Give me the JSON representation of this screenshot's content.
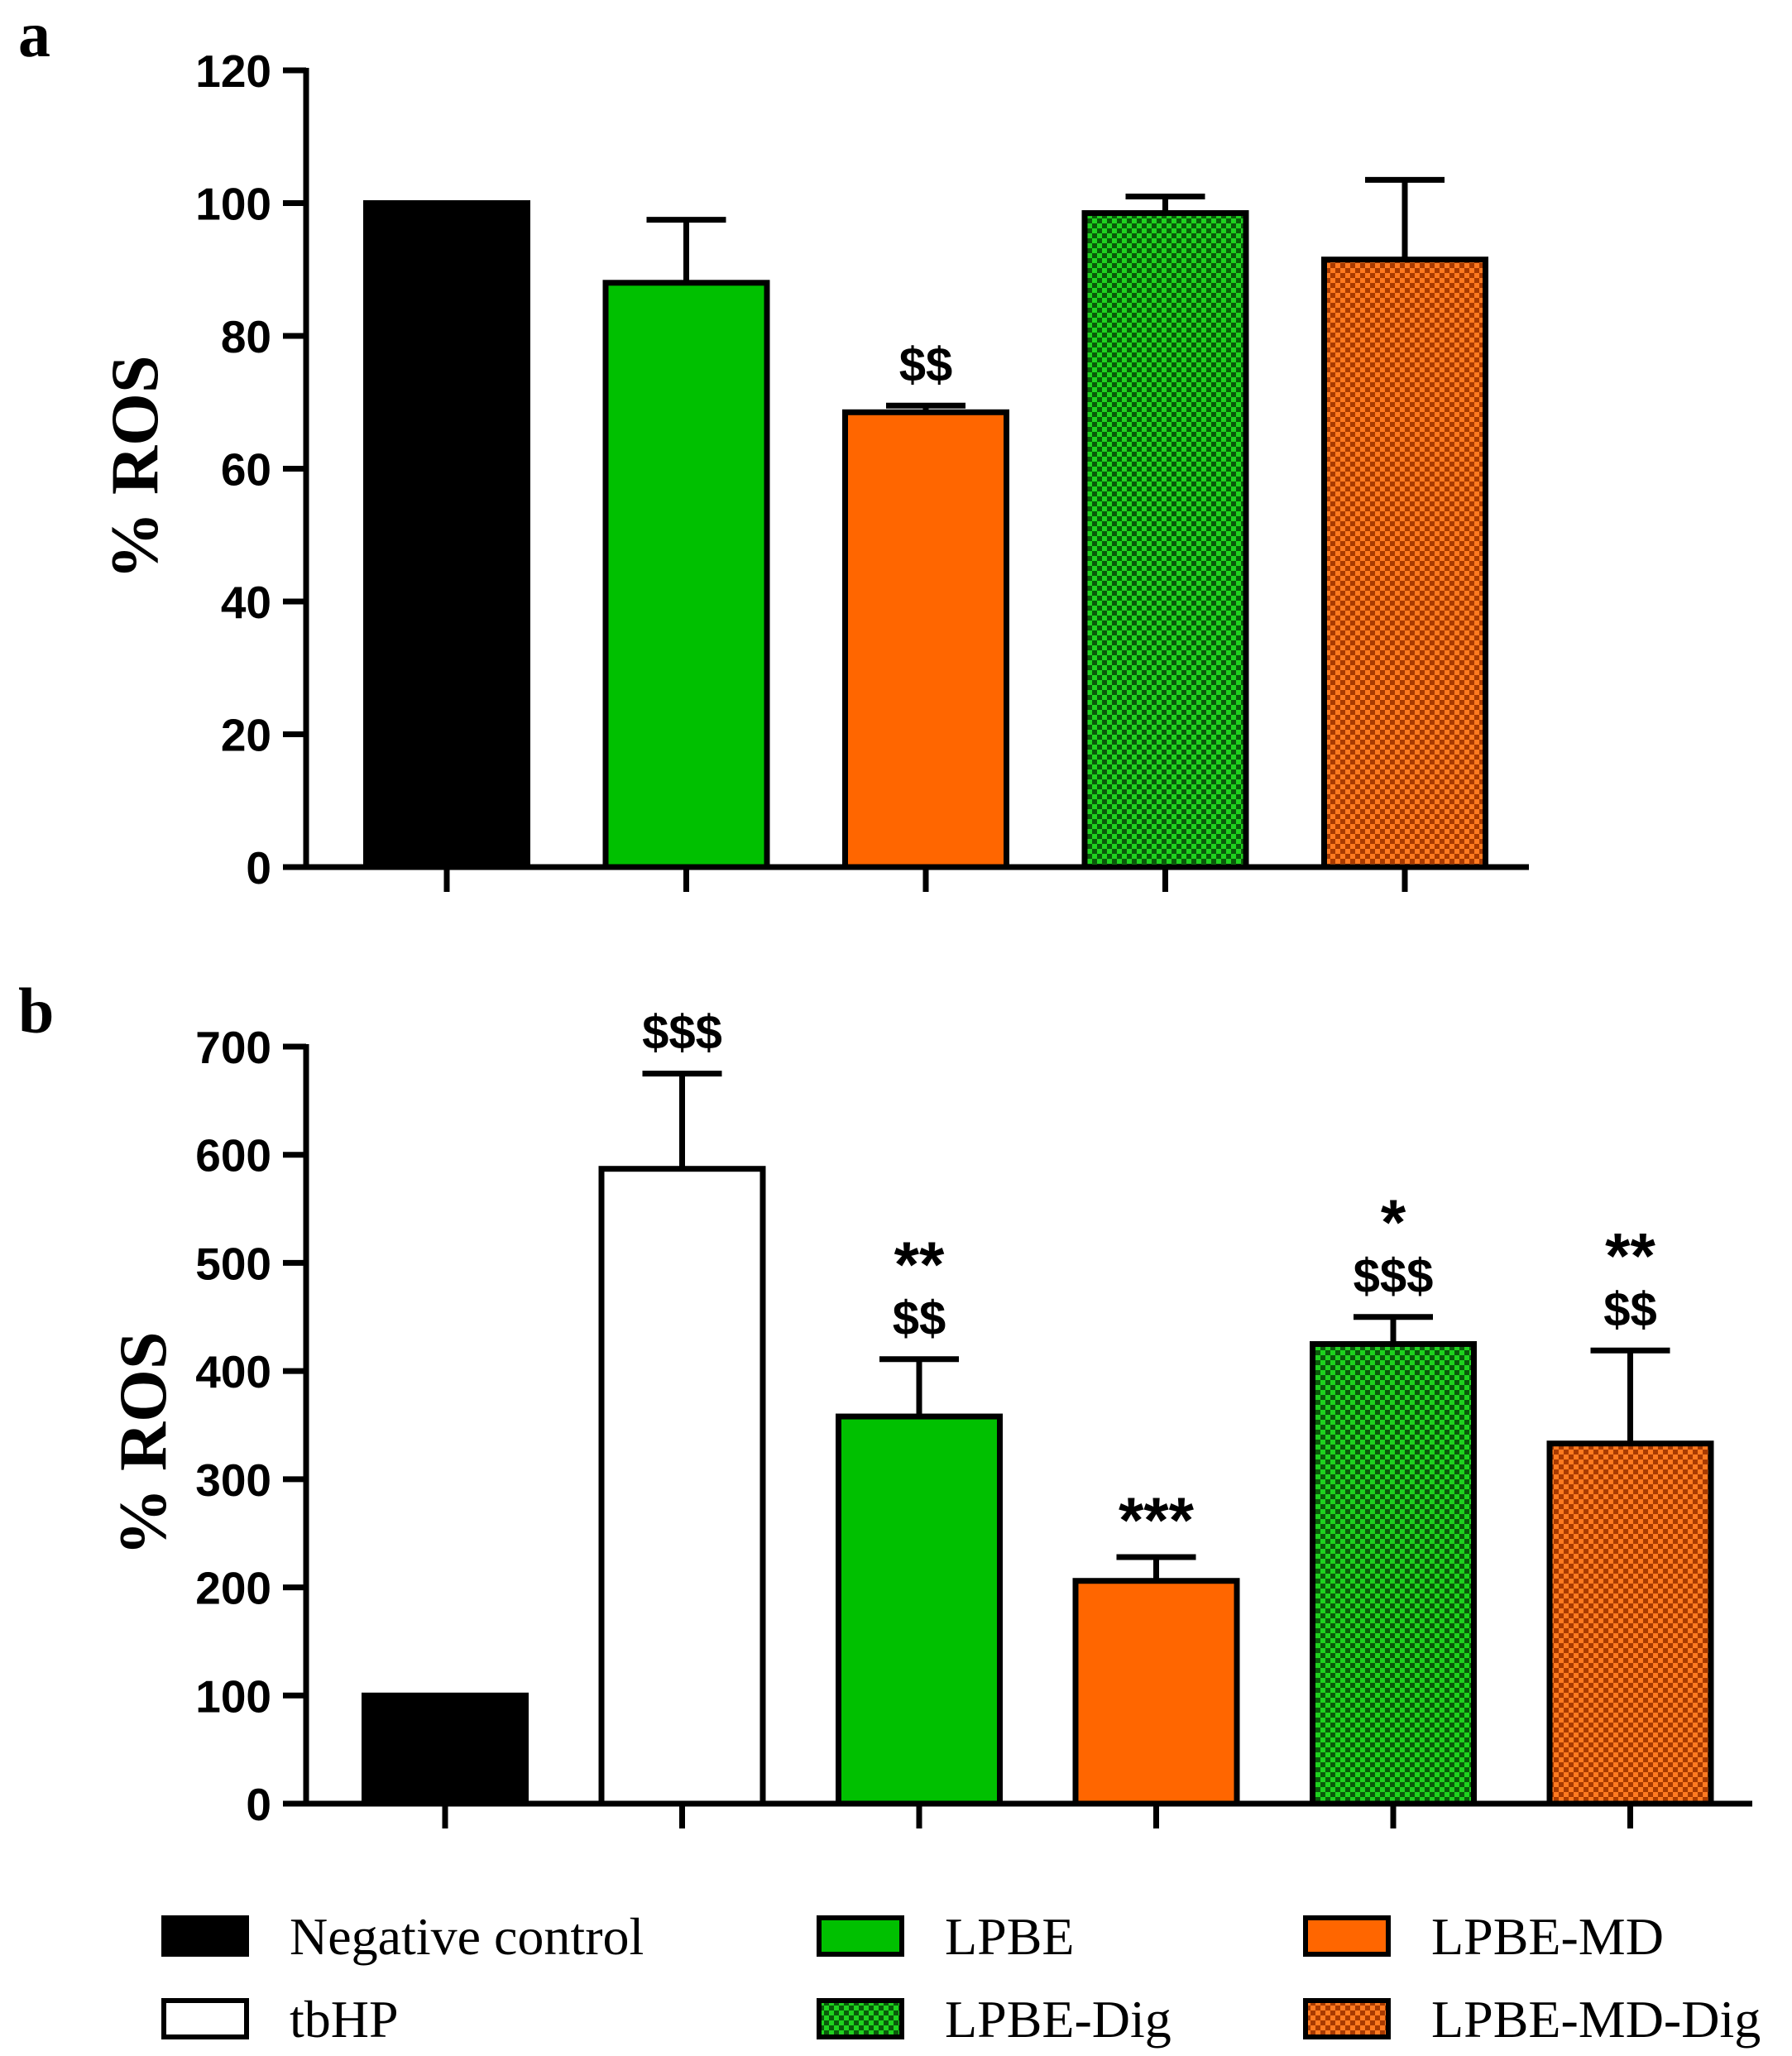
{
  "colors": {
    "negative_control": "#000000",
    "tbhp": "#ffffff",
    "lpbe": "#00c000",
    "lpbe_md": "#ff6600",
    "lpbe_dig_base": "#0a5a0a",
    "lpbe_dig_check": "#1fd21f",
    "lpbe_md_dig_base": "#a83a00",
    "lpbe_md_dig_check": "#ff7a20"
  },
  "legend": [
    {
      "label": "Negative control",
      "fill": "negative_control"
    },
    {
      "label": "tbHP",
      "fill": "tbhp"
    },
    {
      "label": "LPBE",
      "fill": "lpbe"
    },
    {
      "label": "LPBE-Dig",
      "fill": "lpbe_dig"
    },
    {
      "label": "LPBE-MD",
      "fill": "lpbe_md"
    },
    {
      "label": "LPBE-MD-Dig",
      "fill": "lpbe_md_dig"
    }
  ],
  "chart_data": [
    {
      "type": "bar",
      "panel": "a",
      "title": "",
      "xlabel": "",
      "ylabel": "% ROS",
      "ylim": [
        0,
        120
      ],
      "yticks": [
        0,
        20,
        40,
        60,
        80,
        100,
        120
      ],
      "categories": [
        "Negative control",
        "LPBE",
        "LPBE-MD",
        "LPBE-Dig",
        "LPBE-MD-Dig"
      ],
      "fills": [
        "negative_control",
        "lpbe",
        "lpbe_md",
        "lpbe_dig",
        "lpbe_md_dig"
      ],
      "values": [
        100,
        88,
        68.5,
        98.5,
        91.5
      ],
      "errors": [
        0,
        9.5,
        1,
        2.5,
        12
      ],
      "annotations": [
        [],
        [],
        [
          "$$"
        ],
        [],
        []
      ]
    },
    {
      "type": "bar",
      "panel": "b",
      "title": "",
      "xlabel": "",
      "ylabel": "% ROS",
      "ylim": [
        0,
        700
      ],
      "yticks": [
        0,
        100,
        200,
        300,
        400,
        500,
        600,
        700
      ],
      "categories": [
        "Negative control",
        "tbHP",
        "LPBE",
        "LPBE-MD",
        "LPBE-Dig",
        "LPBE-MD-Dig"
      ],
      "fills": [
        "negative_control",
        "tbhp",
        "lpbe",
        "lpbe_md",
        "lpbe_dig",
        "lpbe_md_dig"
      ],
      "values": [
        100,
        587,
        358,
        206,
        425,
        333
      ],
      "errors": [
        0,
        88,
        53,
        22,
        25,
        86
      ],
      "annotations": [
        [],
        [
          "$$$"
        ],
        [
          "**",
          "$$"
        ],
        [
          "***"
        ],
        [
          "*",
          "$$$"
        ],
        [
          "**",
          "$$"
        ]
      ]
    }
  ]
}
